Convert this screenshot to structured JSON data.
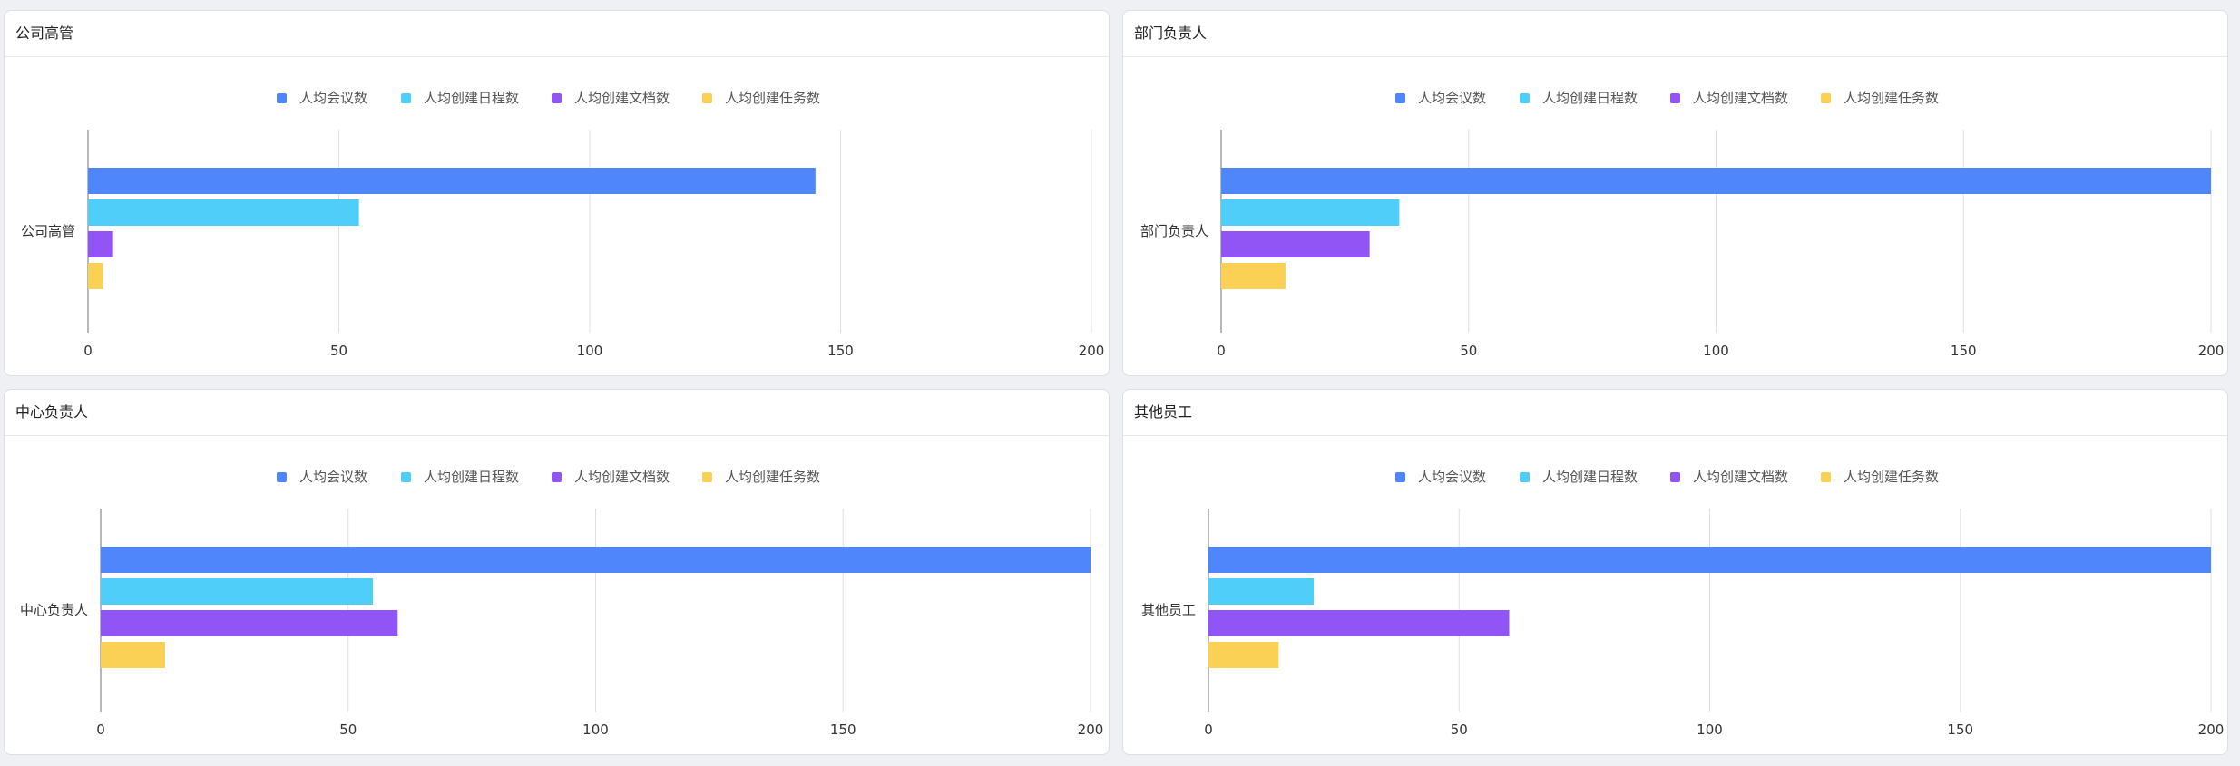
{
  "colors": {
    "meetings": "#4f86fc",
    "schedules": "#50cefa",
    "documents": "#9155f5",
    "tasks": "#fad154"
  },
  "legend": [
    "人均会议数",
    "人均创建日程数",
    "人均创建文档数",
    "人均创建任务数"
  ],
  "chart_data": [
    {
      "type": "bar",
      "title": "公司高管",
      "categories": [
        "公司高管"
      ],
      "series": [
        {
          "name": "人均会议数",
          "values": [
            145
          ]
        },
        {
          "name": "人均创建日程数",
          "values": [
            54
          ]
        },
        {
          "name": "人均创建文档数",
          "values": [
            5
          ]
        },
        {
          "name": "人均创建任务数",
          "values": [
            3
          ]
        }
      ],
      "xticks": [
        0,
        50,
        100,
        150,
        200
      ],
      "xlim": [
        0,
        200
      ]
    },
    {
      "type": "bar",
      "title": "部门负责人",
      "categories": [
        "部门负责人"
      ],
      "series": [
        {
          "name": "人均会议数",
          "values": [
            200
          ]
        },
        {
          "name": "人均创建日程数",
          "values": [
            36
          ]
        },
        {
          "name": "人均创建文档数",
          "values": [
            30
          ]
        },
        {
          "name": "人均创建任务数",
          "values": [
            13
          ]
        }
      ],
      "xticks": [
        0,
        50,
        100,
        150,
        200
      ],
      "xlim": [
        0,
        200
      ]
    },
    {
      "type": "bar",
      "title": "中心负责人",
      "categories": [
        "中心负责人"
      ],
      "series": [
        {
          "name": "人均会议数",
          "values": [
            200
          ]
        },
        {
          "name": "人均创建日程数",
          "values": [
            55
          ]
        },
        {
          "name": "人均创建文档数",
          "values": [
            60
          ]
        },
        {
          "name": "人均创建任务数",
          "values": [
            13
          ]
        }
      ],
      "xticks": [
        0,
        50,
        100,
        150,
        200
      ],
      "xlim": [
        0,
        200
      ]
    },
    {
      "type": "bar",
      "title": "其他员工",
      "categories": [
        "其他员工"
      ],
      "series": [
        {
          "name": "人均会议数",
          "values": [
            200
          ]
        },
        {
          "name": "人均创建日程数",
          "values": [
            21
          ]
        },
        {
          "name": "人均创建文档数",
          "values": [
            60
          ]
        },
        {
          "name": "人均创建任务数",
          "values": [
            14
          ]
        }
      ],
      "xticks": [
        0,
        50,
        100,
        150,
        200
      ],
      "xlim": [
        0,
        200
      ]
    }
  ]
}
